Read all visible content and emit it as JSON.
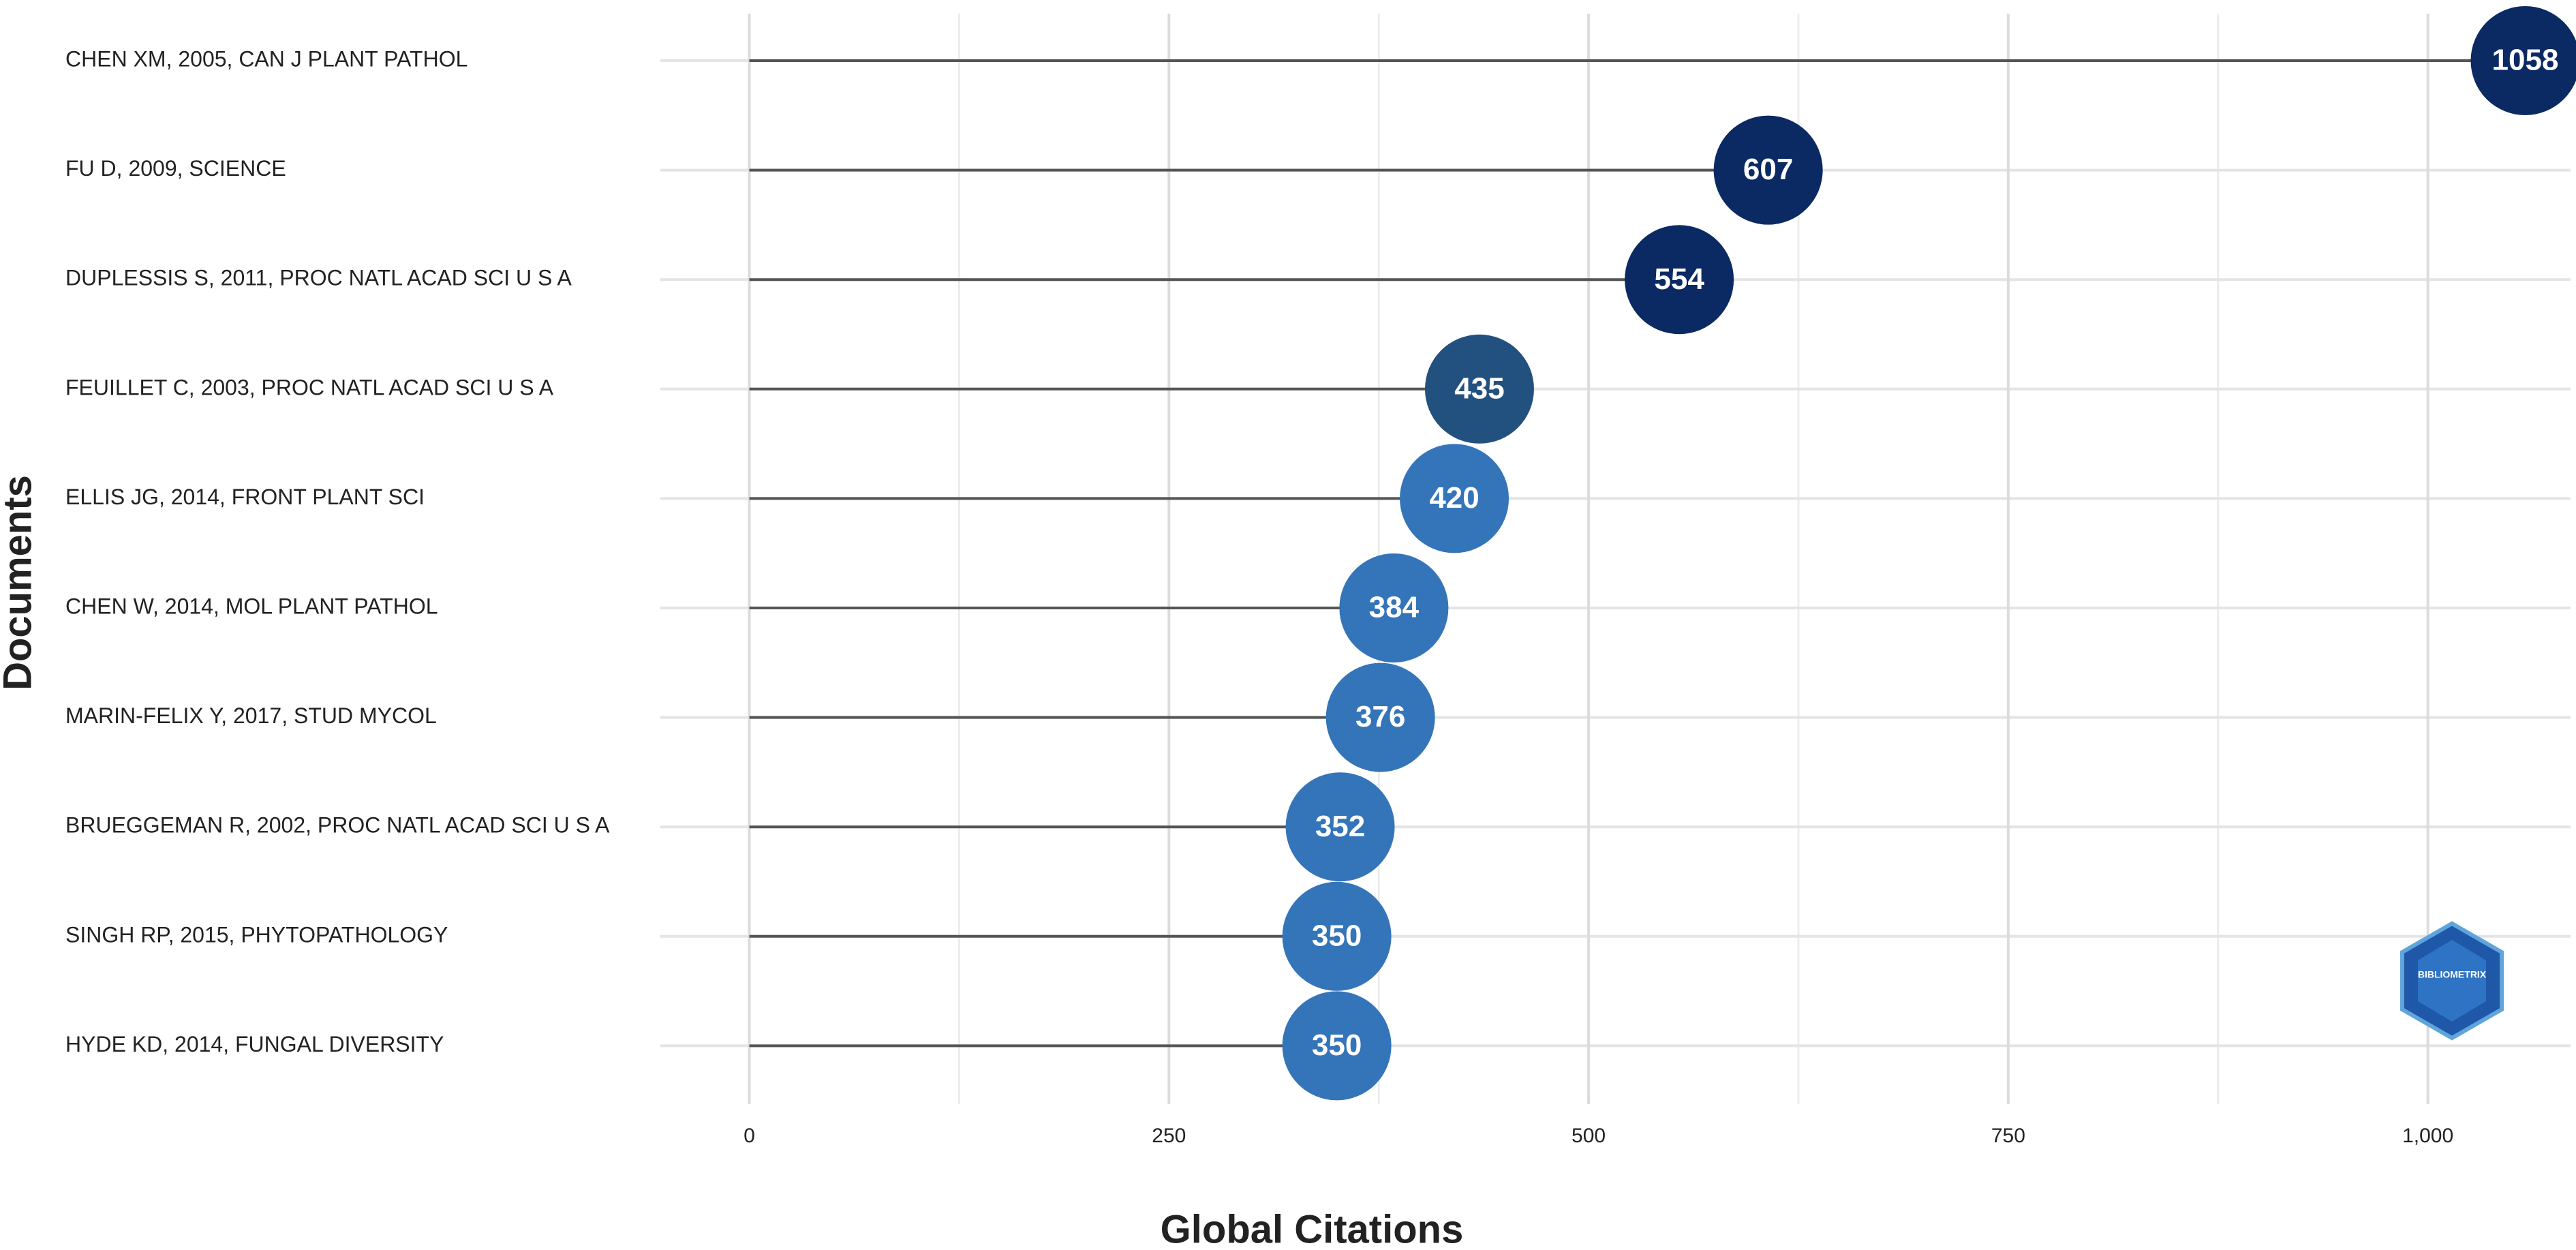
{
  "chart_data": {
    "type": "lollipop",
    "x_label": "Global Citations",
    "y_label": "Documents",
    "categories": [
      "CHEN XM, 2005, CAN J PLANT PATHOL",
      "FU D, 2009, SCIENCE",
      "DUPLESSIS S, 2011, PROC NATL ACAD SCI U S A",
      "FEUILLET C, 2003, PROC NATL ACAD SCI U S A",
      "ELLIS JG, 2014, FRONT PLANT SCI",
      "CHEN W, 2014, MOL PLANT PATHOL",
      "MARIN-FELIX Y, 2017, STUD MYCOL",
      "BRUEGGEMAN R, 2002, PROC NATL ACAD SCI U S A",
      "SINGH RP, 2015, PHYTOPATHOLOGY",
      "HYDE KD, 2014, FUNGAL DIVERSITY"
    ],
    "values": [
      1058,
      607,
      554,
      435,
      420,
      384,
      376,
      352,
      350,
      350
    ],
    "colors": [
      "#0b2a63",
      "#0b2a63",
      "#0b2a63",
      "#23517f",
      "#3474b9",
      "#3474b9",
      "#3474b9",
      "#3474b9",
      "#3474b9",
      "#3474b9"
    ],
    "xlim": [
      -53,
      1085
    ],
    "xticks": [
      0,
      250,
      500,
      750,
      {
        "value": 1000,
        "label": "1,000"
      }
    ],
    "grid": true,
    "watermark": "BIBLIOMETRIX"
  }
}
